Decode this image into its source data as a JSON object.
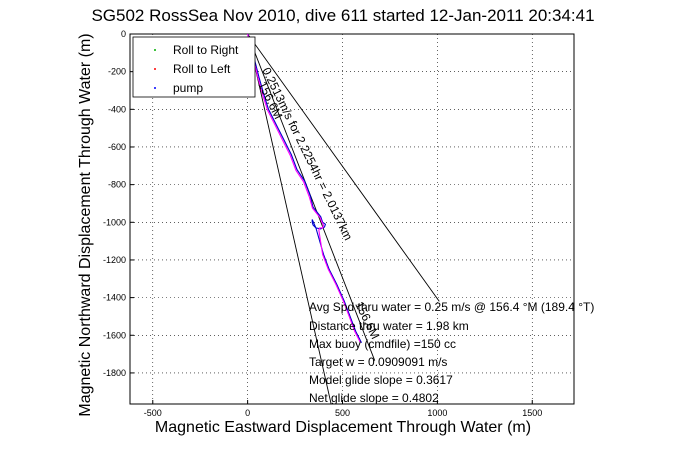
{
  "chart_data": {
    "type": "line",
    "title": "SG502 RossSea Nov 2010, dive 611 started 12-Jan-2011 20:34:41",
    "xlabel": "Magnetic Eastward Displacement Through Water (m)",
    "ylabel": "Magnetic Northward Displacement Through Water (m)",
    "xlim": [
      -620,
      1720
    ],
    "ylim": [
      -1965,
      0
    ],
    "xticks": [
      -500,
      0,
      500,
      1000,
      1500
    ],
    "yticks": [
      0,
      -200,
      -400,
      -600,
      -800,
      -1000,
      -1200,
      -1400,
      -1600,
      -1800
    ],
    "grid": true,
    "legend": {
      "placement": "top-left",
      "entries": [
        {
          "label": "Roll to Right",
          "color": "#00b000",
          "marker": "dot"
        },
        {
          "label": "Roll to Left",
          "color": "#ff0000",
          "marker": "dot"
        },
        {
          "label": "pump",
          "color": "#0000ff",
          "marker": "dot"
        }
      ]
    },
    "series": [
      {
        "color": "#0000cc",
        "x": [
          0,
          10,
          25,
          40,
          60,
          85,
          110,
          150,
          190,
          230,
          260,
          300,
          330,
          345,
          385,
          395,
          410,
          405,
          385,
          360,
          345,
          340,
          340,
          360,
          380,
          400,
          430,
          470,
          510,
          540,
          570,
          600
        ],
        "y": [
          0,
          -30,
          -80,
          -150,
          -230,
          -320,
          -400,
          -480,
          -560,
          -640,
          -720,
          -780,
          -860,
          -920,
          -970,
          -1000,
          -1010,
          -1025,
          -1035,
          -1030,
          -1015,
          -1000,
          -985,
          -1030,
          -1100,
          -1170,
          -1250,
          -1330,
          -1420,
          -1500,
          -1580,
          -1640
        ]
      },
      {
        "color": "#ff00ff",
        "x": [
          0,
          8,
          22,
          36,
          55,
          80,
          105,
          145,
          185,
          225,
          255,
          295,
          325,
          342,
          382,
          392,
          400,
          395,
          380,
          375,
          395,
          425,
          465,
          505,
          535,
          565,
          595
        ],
        "y": [
          0,
          -35,
          -85,
          -155,
          -235,
          -325,
          -405,
          -485,
          -565,
          -645,
          -725,
          -785,
          -865,
          -925,
          -975,
          -1000,
          -1015,
          -1030,
          -1030,
          -1040,
          -1170,
          -1250,
          -1330,
          -1420,
          -1500,
          -1580,
          -1640
        ]
      }
    ],
    "cone_lines": [
      {
        "x": [
          0,
          670
        ],
        "y": [
          0,
          -1735
        ]
      },
      {
        "x": [
          0,
          440
        ],
        "y": [
          0,
          -1965
        ]
      },
      {
        "x": [
          0,
          1010
        ],
        "y": [
          0,
          -1420
        ]
      }
    ],
    "annotations": {
      "rotated_1": "0.2513m/s for 2.2254hr = 2.0137km",
      "rotated_2": "156.6M",
      "rotated_3": "156.6M",
      "lines": [
        "Avg Spd thru water =  0.25 m/s @ 156.4   °M (189.4 °T)",
        "Distance thru water =  1.98 km",
        "Max buoy (cmdfile) =150 cc",
        "Target w = 0.0909091 m/s",
        "Model glide slope = 0.3617",
        "Net glide slope = 0.4802"
      ]
    }
  }
}
